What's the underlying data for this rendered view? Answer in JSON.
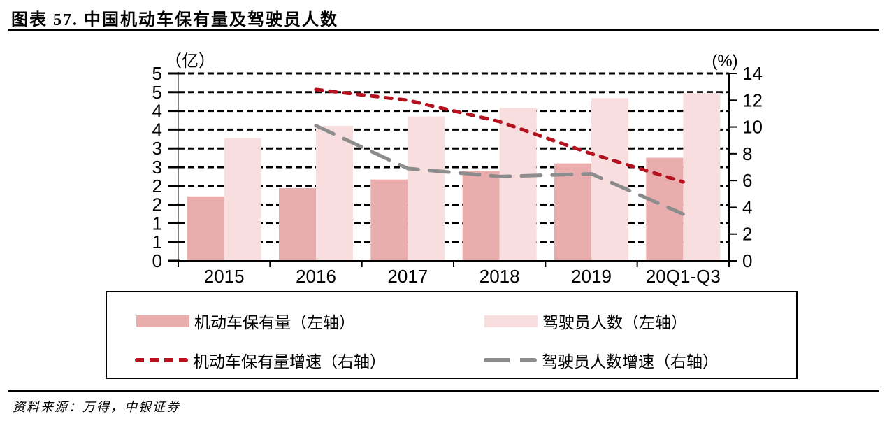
{
  "figure": {
    "title": "图表 57. 中国机动车保有量及驾驶员人数",
    "source": "资料来源：万得，中银证券"
  },
  "chart_data": {
    "type": "bar",
    "combo": "bar series on left axis with dashed line series overlaid on right axis",
    "title": "中国机动车保有量及驾驶员人数",
    "categories": [
      "2015",
      "2016",
      "2017",
      "2018",
      "2019",
      "20Q1-Q3"
    ],
    "left_axis": {
      "unit": "（亿）",
      "min": 0,
      "max": 5,
      "step": 0.5,
      "tick_labels_top_to_bottom": [
        "5",
        "5",
        "4",
        "4",
        "3",
        "3",
        "2",
        "2",
        "1",
        "1",
        "0"
      ],
      "line_color": "#808080"
    },
    "right_axis": {
      "unit": "(%)",
      "min": 0,
      "max": 14,
      "step": 2,
      "tick_labels_top_to_bottom": [
        "14",
        "12",
        "10",
        "8",
        "6",
        "4",
        "2",
        "0"
      ],
      "line_color": "#000000"
    },
    "grid": {
      "show": true,
      "style": "horizontal dashed",
      "color": "#000000"
    },
    "legend_position": "bottom boxed, 2 columns",
    "series": [
      {
        "name": "机动车保有量（左轴）",
        "kind": "bar",
        "axis": "left",
        "color": "#EAADAD",
        "values": [
          1.72,
          1.94,
          2.17,
          2.4,
          2.6,
          2.75
        ]
      },
      {
        "name": "驾驶员人数（左轴）",
        "kind": "bar",
        "axis": "left",
        "color": "#F8DEDE",
        "values": [
          3.27,
          3.6,
          3.85,
          4.08,
          4.34,
          4.48
        ]
      },
      {
        "name": "机动车保有量增速（右轴）",
        "kind": "line",
        "dash": "short",
        "axis": "right",
        "color": "#B4121F",
        "values": [
          null,
          12.8,
          12.0,
          10.4,
          8.0,
          5.9
        ]
      },
      {
        "name": "驾驶员人数增速（右轴）",
        "kind": "line",
        "dash": "long",
        "axis": "right",
        "color": "#8C8C8C",
        "values": [
          null,
          10.1,
          6.9,
          6.3,
          6.5,
          3.5
        ]
      }
    ]
  }
}
